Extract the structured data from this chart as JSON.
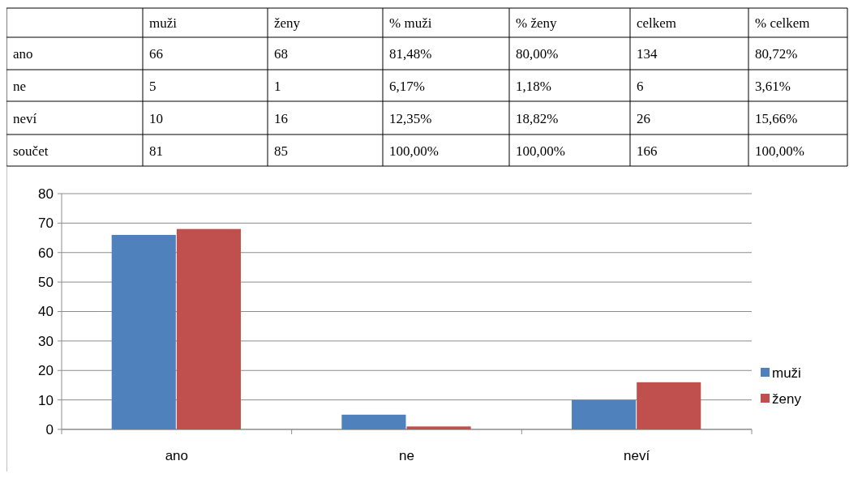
{
  "chart_data": [
    {
      "type": "other",
      "categories": [
        null,
        "muži",
        "ženy",
        "% muži",
        "% ženy",
        "celkem",
        "% celkem"
      ],
      "y_categories": [
        "ano",
        "ne",
        "neví",
        "součet"
      ],
      "cell_labels": [
        [
          "66",
          "68",
          "81,48%",
          "80,00%",
          "134",
          "80,72%"
        ],
        [
          "5",
          "1",
          "6,17%",
          "1,18%",
          "6",
          "3,61%"
        ],
        [
          "10",
          "16",
          "12,35%",
          "18,82%",
          "26",
          "15,66%"
        ],
        [
          "81",
          "85",
          "100,00%",
          "100,00%",
          "166",
          "100,00%"
        ]
      ]
    },
    {
      "type": "bar",
      "categories": [
        "ano",
        "ne",
        "neví"
      ],
      "series": [
        {
          "name": "muži",
          "color": "#4f81bd",
          "values": [
            66,
            5,
            10
          ]
        },
        {
          "name": "ženy",
          "color": "#c0504d",
          "values": [
            68,
            1,
            16
          ]
        }
      ],
      "ylim": [
        0,
        80
      ],
      "yticks": [
        0,
        10,
        20,
        30,
        40,
        50,
        60,
        70,
        80
      ],
      "grid": "y",
      "legend": "right"
    }
  ]
}
